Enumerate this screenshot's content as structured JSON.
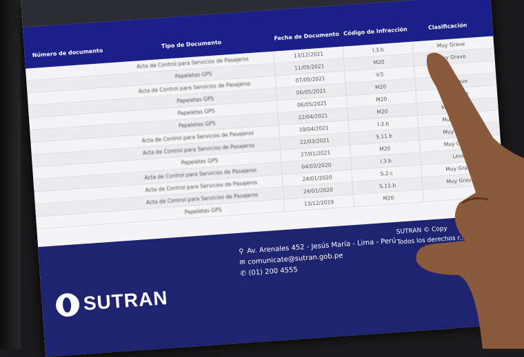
{
  "table": {
    "headers": [
      "Número de documento",
      "Tipo de Documento",
      "Fecha de Documento",
      "Código de Infracción",
      "Clasificación"
    ],
    "rows": [
      {
        "type": "Acta de Control para Servicios de Pasajeros",
        "date": "13/12/2021",
        "code": "I.3.b",
        "class": "Muy Grave"
      },
      {
        "type": "Papeletas GPS",
        "date": "11/05/2021",
        "code": "M20",
        "class": "Muy Grave"
      },
      {
        "type": "Acta de Control para Servicios de Pasajeros",
        "date": "07/05/2021",
        "code": "V.5",
        "class": ""
      },
      {
        "type": "Papeletas GPS",
        "date": "06/05/2021",
        "code": "M20",
        "class": "Muy Grave"
      },
      {
        "type": "Papeletas GPS",
        "date": "06/05/2021",
        "code": "M20",
        "class": "Muy Grave"
      },
      {
        "type": "Papeletas GPS",
        "date": "22/04/2021",
        "code": "M20",
        "class": "Muy Grave"
      },
      {
        "type": "Acta de Control para Servicios de Pasajeros",
        "date": "19/04/2021",
        "code": "I.3.b",
        "class": "Muy Grave"
      },
      {
        "type": "Acta de Control para Servicios de Pasajeros",
        "date": "22/03/2021",
        "code": "S.11.b",
        "class": "Muy Grave"
      },
      {
        "type": "Papeletas GPS",
        "date": "27/01/2021",
        "code": "M20",
        "class": "Muy Grave"
      },
      {
        "type": "Acta de Control para Servicios de Pasajeros",
        "date": "04/03/2020",
        "code": "I.3.b",
        "class": "Leve"
      },
      {
        "type": "Acta de Control para Servicios de Pasajeros",
        "date": "24/01/2020",
        "code": "S.2.c",
        "class": "Muy Grave"
      },
      {
        "type": "Acta de Control para Servicios de Pasajeros",
        "date": "24/01/2020",
        "code": "S.11.b",
        "class": "Muy Grave"
      },
      {
        "type": "Papeletas GPS",
        "date": "13/12/2019",
        "code": "M20",
        "class": ""
      }
    ]
  },
  "footer": {
    "logo": "SUTRAN",
    "address": "Av. Arenales 452 - Jesús María - Lima - Perú",
    "email": "comunicate@sutran.gob.pe",
    "phone": "(01) 200 4555",
    "copyright": "SUTRAN © Copy",
    "rights": "Todos los derechos r..."
  },
  "colors": {
    "header": "#1b1f8a",
    "footer": "#1f2470"
  }
}
